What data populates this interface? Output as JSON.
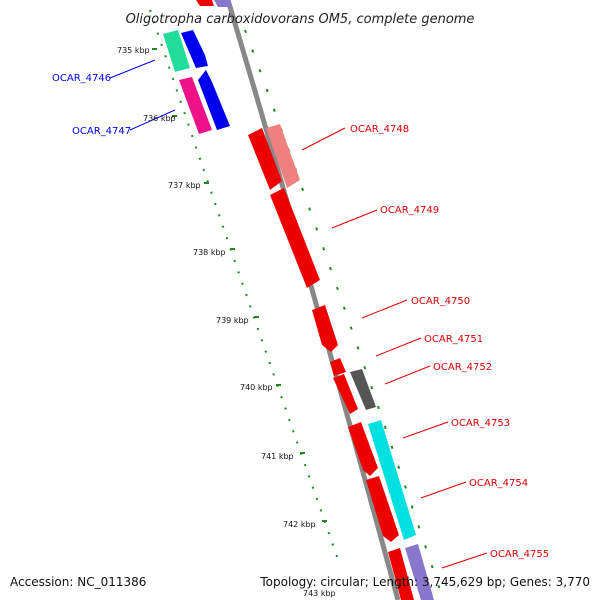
{
  "map": {
    "title": "Oligotropha carboxidovorans OM5, complete genome",
    "accession": "Accession: NC_011386",
    "summary": "Topology: circular; Length: 3,745,629 bp; Genes: 3,770",
    "ticks": [
      "735 kbp",
      "736 kbp",
      "737 kbp",
      "738 kbp",
      "739 kbp",
      "740 kbp",
      "741 kbp",
      "742 kbp",
      "743 kbp"
    ]
  },
  "genes": [
    {
      "label": "OCAR_4746",
      "color": "#0000ff"
    },
    {
      "label": "OCAR_4747",
      "color": "#0000ff"
    },
    {
      "label": "OCAR_4748",
      "color": "#dd0000"
    },
    {
      "label": "OCAR_4749",
      "color": "#dd0000"
    },
    {
      "label": "OCAR_4750",
      "color": "#dd0000"
    },
    {
      "label": "OCAR_4751",
      "color": "#dd0000"
    },
    {
      "label": "OCAR_4752",
      "color": "#dd0000"
    },
    {
      "label": "OCAR_4753",
      "color": "#dd0000"
    },
    {
      "label": "OCAR_4754",
      "color": "#dd0000"
    },
    {
      "label": "OCAR_4755",
      "color": "#dd0000"
    }
  ],
  "colors": {
    "backbone": "#888888",
    "tick": "#1e8a1e",
    "red": "#ee0000",
    "pink": "#ee8080",
    "blue": "#0000ee",
    "magenta": "#ee1188",
    "mint": "#22dd99",
    "cyan": "#00e0e0",
    "gray": "#555555",
    "lavender": "#8877cc"
  }
}
